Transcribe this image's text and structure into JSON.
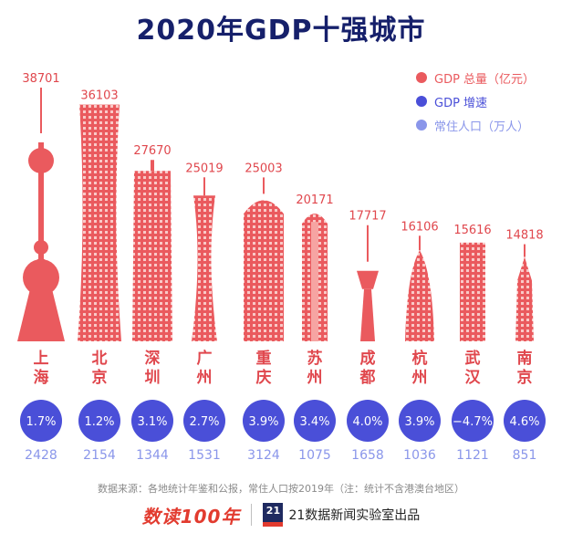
{
  "title": "2020年GDP十强城市",
  "legend": [
    {
      "label": "GDP 总量（亿元）",
      "color": "#ea5a5e"
    },
    {
      "label": "GDP 增速",
      "color": "#4a4fd8"
    },
    {
      "label": "常住人口（万人）",
      "color": "#8a96ea"
    }
  ],
  "chart_data": {
    "type": "bar",
    "categories": [
      "上海",
      "北京",
      "深圳",
      "广州",
      "重庆",
      "苏州",
      "成都",
      "杭州",
      "武汉",
      "南京"
    ],
    "series": [
      {
        "name": "GDP 总量（亿元）",
        "values": [
          38701,
          36103,
          27670,
          25019,
          25003,
          20171,
          17717,
          16106,
          15616,
          14818
        ]
      },
      {
        "name": "GDP 增速",
        "values": [
          1.7,
          1.2,
          3.1,
          2.7,
          3.9,
          3.4,
          4.0,
          3.9,
          -4.7,
          4.6
        ]
      },
      {
        "name": "常住人口（万人）",
        "values": [
          2428,
          2154,
          1344,
          1531,
          3124,
          1075,
          1658,
          1036,
          1121,
          851
        ]
      }
    ],
    "growth_labels": [
      "1.7%",
      "1.2%",
      "3.1%",
      "2.7%",
      "3.9%",
      "3.4%",
      "4.0%",
      "3.9%",
      "−4.7%",
      "4.6%"
    ],
    "colors": {
      "bar": "#ea5a5e",
      "bar_light": "#f6a4a2",
      "growth": "#4a4fd8",
      "population": "#8a96ea",
      "city": "#e0474d"
    }
  },
  "footer": {
    "note": "数据来源：各地统计年鉴和公报，常住人口按2019年（注：统计不含港澳台地区）",
    "logo": "数读100年",
    "badge": "21",
    "publisher": "21数据新闻实验室出品"
  }
}
